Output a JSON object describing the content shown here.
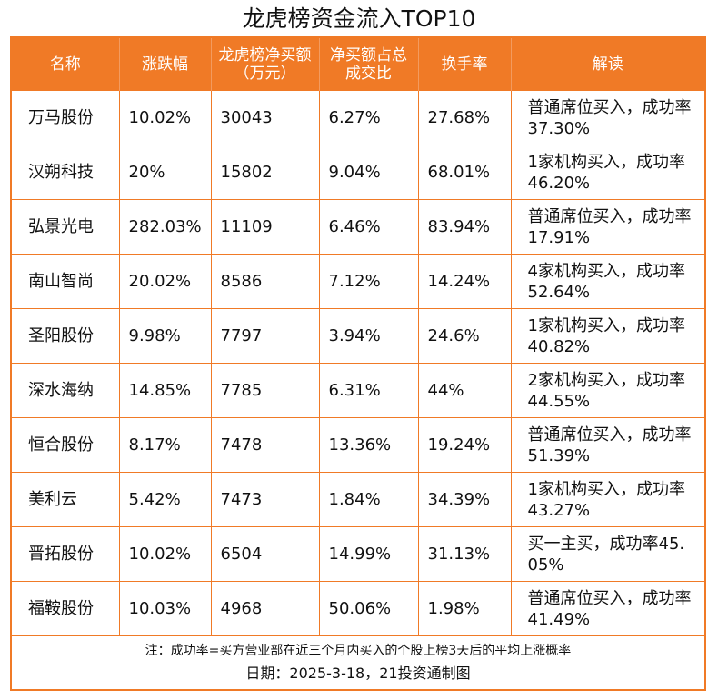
{
  "title": "龙虎榜资金流入TOP10",
  "headers": [
    "名称",
    "涨跌幅",
    "龙虎榜净买额（万元）",
    "净买额占总成交比",
    "换手率",
    "解读"
  ],
  "rows": [
    [
      "万马股份",
      "10.02%",
      "30043",
      "6.27%",
      "27.68%",
      "普通席位买入，成功率37.30%"
    ],
    [
      "汉朔科技",
      "20%",
      "15802",
      "9.04%",
      "68.01%",
      "1家机构买入，成功率46.20%"
    ],
    [
      "弘景光电",
      "282.03%",
      "11109",
      "6.46%",
      "83.94%",
      "普通席位买入，成功率17.91%"
    ],
    [
      "南山智尚",
      "20.02%",
      "8586",
      "7.12%",
      "14.24%",
      "4家机构买入，成功率52.64%"
    ],
    [
      "圣阳股份",
      "9.98%",
      "7797",
      "3.94%",
      "24.6%",
      "1家机构买入，成功率40.82%"
    ],
    [
      "深水海纳",
      "14.85%",
      "7785",
      "6.31%",
      "44%",
      "2家机构买入，成功率44.55%"
    ],
    [
      "恒合股份",
      "8.17%",
      "7478",
      "13.36%",
      "19.24%",
      "普通席位买入，成功率51.39%"
    ],
    [
      "美利云",
      "5.42%",
      "7473",
      "1.84%",
      "34.39%",
      "1家机构买入，成功率43.27%"
    ],
    [
      "晋拓股份",
      "10.02%",
      "6504",
      "14.99%",
      "31.13%",
      "买一主买，成功率45.05%"
    ],
    [
      "福鞍股份",
      "10.03%",
      "4968",
      "50.06%",
      "1.98%",
      "普通席位买入，成功率41.49%"
    ]
  ],
  "note": "注：成功率=买方营业部在近三个月内买入的个股上榜3天后的平均上涨概率",
  "date": "日期：2025-3-18，21投资通制图",
  "colors": {
    "accent": "#f07a26",
    "header_text": "#ffffff"
  }
}
